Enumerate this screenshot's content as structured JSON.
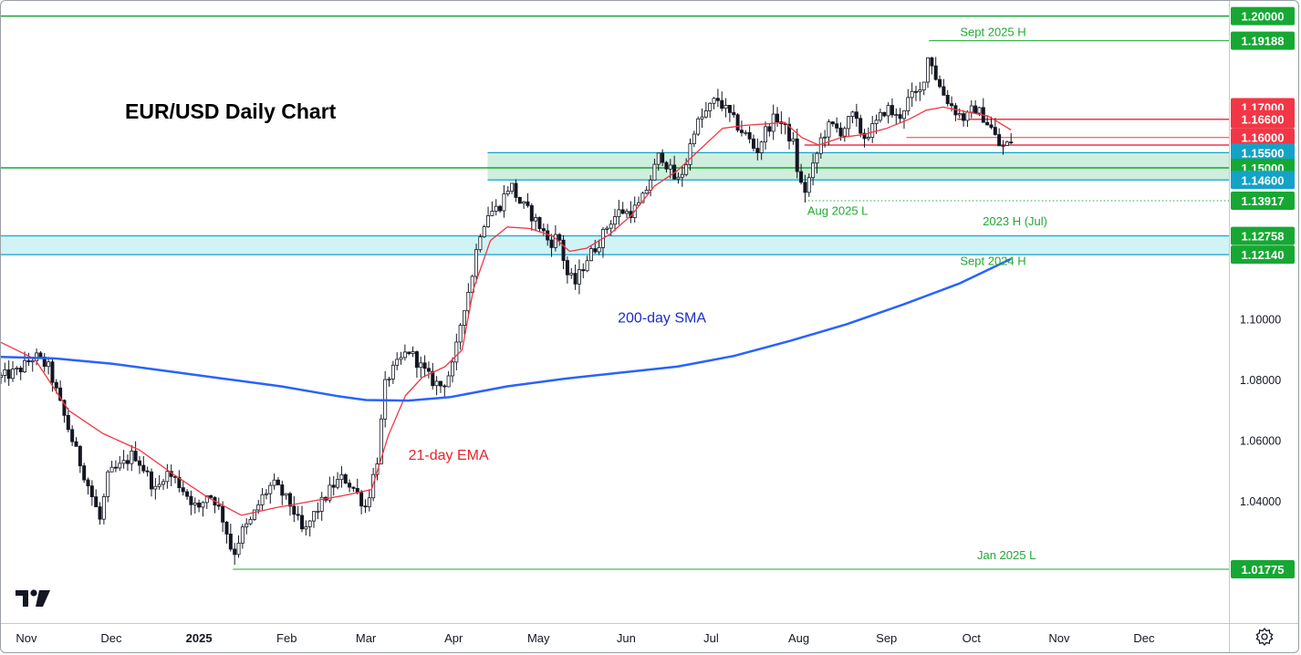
{
  "chart_data": {
    "type": "candlestick",
    "title": "EUR/USD Daily Chart",
    "price_axis": {
      "ylim": [
        1.0,
        1.205
      ],
      "ticks": [
        "1.10000",
        "1.08000",
        "1.06000",
        "1.04000"
      ]
    },
    "time_axis": {
      "months": [
        {
          "label": "Nov",
          "day": 0,
          "bold": false
        },
        {
          "label": "Dec",
          "day": 30,
          "bold": false
        },
        {
          "label": "2025",
          "day": 61,
          "bold": true
        },
        {
          "label": "Feb",
          "day": 92,
          "bold": false
        },
        {
          "label": "Mar",
          "day": 120,
          "bold": false
        },
        {
          "label": "Apr",
          "day": 151,
          "bold": false
        },
        {
          "label": "May",
          "day": 181,
          "bold": false
        },
        {
          "label": "Jun",
          "day": 212,
          "bold": false
        },
        {
          "label": "Jul",
          "day": 242,
          "bold": false
        },
        {
          "label": "Aug",
          "day": 273,
          "bold": false
        },
        {
          "label": "Sep",
          "day": 304,
          "bold": false
        },
        {
          "label": "Oct",
          "day": 334,
          "bold": false
        },
        {
          "label": "Nov",
          "day": 365,
          "bold": false
        },
        {
          "label": "Dec",
          "day": 395,
          "bold": false
        }
      ],
      "xlim_days": [
        -9,
        425
      ]
    },
    "price_path": [
      [
        -9,
        1.081
      ],
      [
        -3,
        1.083
      ],
      [
        3,
        1.088
      ],
      [
        8,
        1.084
      ],
      [
        12,
        1.072
      ],
      [
        17,
        1.058
      ],
      [
        22,
        1.045
      ],
      [
        26,
        1.034
      ],
      [
        29,
        1.049
      ],
      [
        34,
        1.052
      ],
      [
        38,
        1.056
      ],
      [
        42,
        1.05
      ],
      [
        46,
        1.043
      ],
      [
        49,
        1.05
      ],
      [
        53,
        1.047
      ],
      [
        57,
        1.042
      ],
      [
        61,
        1.037
      ],
      [
        64,
        1.043
      ],
      [
        67,
        1.04
      ],
      [
        70,
        1.033
      ],
      [
        73,
        1.022
      ],
      [
        76,
        1.03
      ],
      [
        79,
        1.033
      ],
      [
        83,
        1.041
      ],
      [
        87,
        1.046
      ],
      [
        90,
        1.043
      ],
      [
        94,
        1.038
      ],
      [
        98,
        1.029
      ],
      [
        101,
        1.035
      ],
      [
        104,
        1.039
      ],
      [
        108,
        1.045
      ],
      [
        112,
        1.048
      ],
      [
        116,
        1.044
      ],
      [
        120,
        1.038
      ],
      [
        124,
        1.054
      ],
      [
        127,
        1.08
      ],
      [
        131,
        1.085
      ],
      [
        135,
        1.09
      ],
      [
        139,
        1.085
      ],
      [
        143,
        1.08
      ],
      [
        147,
        1.078
      ],
      [
        151,
        1.085
      ],
      [
        154,
        1.102
      ],
      [
        157,
        1.112
      ],
      [
        160,
        1.128
      ],
      [
        163,
        1.135
      ],
      [
        167,
        1.137
      ],
      [
        171,
        1.145
      ],
      [
        174,
        1.139
      ],
      [
        178,
        1.135
      ],
      [
        182,
        1.13
      ],
      [
        185,
        1.125
      ],
      [
        188,
        1.128
      ],
      [
        191,
        1.115
      ],
      [
        194,
        1.112
      ],
      [
        198,
        1.12
      ],
      [
        202,
        1.125
      ],
      [
        206,
        1.132
      ],
      [
        210,
        1.136
      ],
      [
        213,
        1.135
      ],
      [
        217,
        1.138
      ],
      [
        220,
        1.145
      ],
      [
        224,
        1.155
      ],
      [
        227,
        1.15
      ],
      [
        230,
        1.145
      ],
      [
        233,
        1.151
      ],
      [
        236,
        1.163
      ],
      [
        240,
        1.168
      ],
      [
        244,
        1.173
      ],
      [
        248,
        1.168
      ],
      [
        252,
        1.163
      ],
      [
        255,
        1.16
      ],
      [
        258,
        1.155
      ],
      [
        261,
        1.162
      ],
      [
        265,
        1.167
      ],
      [
        268,
        1.163
      ],
      [
        271,
        1.158
      ],
      [
        273,
        1.146
      ],
      [
        275,
        1.142
      ],
      [
        278,
        1.15
      ],
      [
        281,
        1.16
      ],
      [
        284,
        1.164
      ],
      [
        288,
        1.162
      ],
      [
        292,
        1.167
      ],
      [
        296,
        1.16
      ],
      [
        300,
        1.164
      ],
      [
        304,
        1.17
      ],
      [
        308,
        1.166
      ],
      [
        312,
        1.173
      ],
      [
        316,
        1.175
      ],
      [
        319,
        1.188
      ],
      [
        322,
        1.178
      ],
      [
        325,
        1.173
      ],
      [
        329,
        1.168
      ],
      [
        332,
        1.166
      ],
      [
        335,
        1.17
      ],
      [
        338,
        1.167
      ],
      [
        341,
        1.163
      ],
      [
        344,
        1.157
      ],
      [
        346,
        1.157
      ],
      [
        348,
        1.159
      ]
    ],
    "series": [
      {
        "name": "21-day EMA",
        "color": "#f23645",
        "points": [
          [
            -9,
            1.0925
          ],
          [
            3,
            1.087
          ],
          [
            15,
            1.07
          ],
          [
            27,
            1.0625
          ],
          [
            40,
            1.057
          ],
          [
            52,
            1.049
          ],
          [
            64,
            1.0415
          ],
          [
            76,
            1.0355
          ],
          [
            88,
            1.038
          ],
          [
            100,
            1.04
          ],
          [
            112,
            1.042
          ],
          [
            122,
            1.044
          ],
          [
            128,
            1.062
          ],
          [
            134,
            1.075
          ],
          [
            140,
            1.081
          ],
          [
            148,
            1.0845
          ],
          [
            154,
            1.09
          ],
          [
            158,
            1.11
          ],
          [
            164,
            1.126
          ],
          [
            170,
            1.1305
          ],
          [
            178,
            1.13
          ],
          [
            186,
            1.1275
          ],
          [
            192,
            1.1225
          ],
          [
            198,
            1.1235
          ],
          [
            206,
            1.128
          ],
          [
            214,
            1.1345
          ],
          [
            222,
            1.144
          ],
          [
            230,
            1.149
          ],
          [
            238,
            1.156
          ],
          [
            246,
            1.163
          ],
          [
            254,
            1.164
          ],
          [
            262,
            1.1645
          ],
          [
            268,
            1.165
          ],
          [
            274,
            1.16
          ],
          [
            280,
            1.1575
          ],
          [
            288,
            1.16
          ],
          [
            296,
            1.161
          ],
          [
            304,
            1.163
          ],
          [
            312,
            1.166
          ],
          [
            318,
            1.169
          ],
          [
            324,
            1.17
          ],
          [
            332,
            1.1685
          ],
          [
            340,
            1.167
          ],
          [
            348,
            1.1625
          ]
        ]
      },
      {
        "name": "200-day SMA",
        "color": "#2962ff",
        "points": [
          [
            -9,
            1.0877
          ],
          [
            10,
            1.0872
          ],
          [
            30,
            1.0855
          ],
          [
            50,
            1.083
          ],
          [
            70,
            1.0805
          ],
          [
            90,
            1.078
          ],
          [
            110,
            1.0748
          ],
          [
            120,
            1.0735
          ],
          [
            135,
            1.0733
          ],
          [
            150,
            1.0745
          ],
          [
            170,
            1.078
          ],
          [
            190,
            1.0805
          ],
          [
            210,
            1.0825
          ],
          [
            230,
            1.0845
          ],
          [
            250,
            1.088
          ],
          [
            270,
            1.093
          ],
          [
            290,
            1.0985
          ],
          [
            310,
            1.105
          ],
          [
            330,
            1.112
          ],
          [
            348,
            1.12
          ]
        ]
      }
    ],
    "zones": [
      {
        "from": 1.146,
        "to": 1.155,
        "x_start_day": 163,
        "color": "#cfeedd",
        "border": "#13a2c8"
      },
      {
        "from": 1.1214,
        "to": 1.12758,
        "x_start_day": -9,
        "color": "#d0f3f6",
        "border": "#13a2c8"
      }
    ],
    "levels": [
      {
        "price": 1.2,
        "label": "1.20000",
        "badge": "#16a833",
        "line": "#16a833",
        "x_start_day": -9,
        "style": "solid",
        "width": 1.5
      },
      {
        "price": 1.19188,
        "label": "1.19188",
        "badge": "#16a833",
        "line": "#16a833",
        "x_start_day": 319,
        "style": "solid",
        "width": 1
      },
      {
        "price": 1.17,
        "label": "1.17000",
        "badge": "#f23645",
        "line": null
      },
      {
        "price": 1.166,
        "label": "1.16600",
        "badge": "#f23645",
        "line": "#f23645",
        "x_start_day": 329,
        "style": "solid",
        "width": 1.5
      },
      {
        "price": 1.16,
        "label": "1.16000",
        "badge": "#f23645",
        "line": "#f23645",
        "x_start_day": 311,
        "style": "solid",
        "width": 1
      },
      {
        "price": 1.155,
        "label": "1.15500",
        "badge": "#13a2c8",
        "line": null
      },
      {
        "price": 1.15,
        "label": "1.15000",
        "badge": "#16a833",
        "line": "#16a833",
        "x_start_day": -9,
        "style": "solid",
        "width": 1.5
      },
      {
        "price": 1.146,
        "label": "1.14600",
        "badge": "#13a2c8",
        "line": null
      },
      {
        "price": 1.13917,
        "label": "1.13917",
        "badge": "#16a833",
        "line": "#16a833",
        "x_start_day": 275,
        "style": "dotted",
        "width": 1
      },
      {
        "price": 1.12758,
        "label": "1.12758",
        "badge": "#16a833",
        "line": null
      },
      {
        "price": 1.1214,
        "label": "1.12140",
        "badge": "#16a833",
        "line": null
      },
      {
        "price": 1.01775,
        "label": "1.01775",
        "badge": "#16a833",
        "line": "#16a833",
        "x_start_day": 73,
        "style": "solid",
        "width": 1
      }
    ],
    "support_line": {
      "price": 1.1575,
      "color": "#f23645",
      "x_start_day": 275
    },
    "annotations": [
      {
        "text": "Sept 2025 H",
        "price": 1.1935,
        "day": 330,
        "color": "#22a834",
        "anchor": "start"
      },
      {
        "text": "Aug 2025 L",
        "price": 1.1345,
        "day": 276,
        "color": "#22a834",
        "anchor": "start"
      },
      {
        "text": "2023 H (Jul)",
        "price": 1.131,
        "day": 338,
        "color": "#22a834",
        "anchor": "start"
      },
      {
        "text": "Sept 2024 H",
        "price": 1.118,
        "day": 330,
        "color": "#22a834",
        "anchor": "start"
      },
      {
        "text": "Jan 2025 L",
        "price": 1.021,
        "day": 336,
        "color": "#22a834",
        "anchor": "start"
      },
      {
        "text": "200-day SMA",
        "price": 1.099,
        "day": 209,
        "color": "#1a2ec8",
        "anchor": "start"
      },
      {
        "text": "21-day EMA",
        "price": 1.0538,
        "day": 135,
        "color": "#e3252c",
        "anchor": "start"
      }
    ]
  }
}
